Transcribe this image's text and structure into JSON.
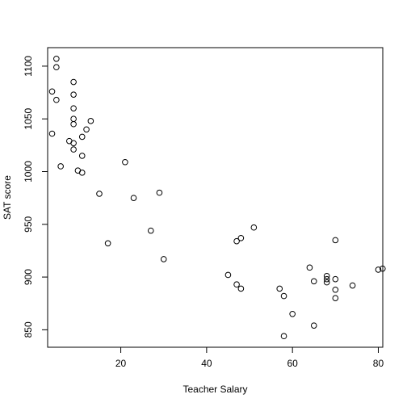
{
  "chart_data": {
    "type": "scatter",
    "title": "",
    "xlabel": "Teacher Salary",
    "ylabel": "SAT score",
    "xlim": [
      2.96,
      81.04
    ],
    "ylim": [
      833.44,
      1117.56
    ],
    "xticks": [
      20,
      40,
      60,
      80
    ],
    "yticks": [
      850,
      900,
      950,
      1000,
      1050,
      1100
    ],
    "grid": false,
    "legend": "none",
    "point_style": "open-circle",
    "colors": {
      "points": "#000000",
      "axes": "#000000",
      "background": "#ffffff"
    },
    "points": [
      {
        "x": 5.0,
        "y": 1107
      },
      {
        "x": 5.0,
        "y": 1099
      },
      {
        "x": 4.0,
        "y": 1076
      },
      {
        "x": 5.0,
        "y": 1068
      },
      {
        "x": 4.0,
        "y": 1036
      },
      {
        "x": 6.0,
        "y": 1005
      },
      {
        "x": 8.0,
        "y": 1029
      },
      {
        "x": 9.0,
        "y": 1085
      },
      {
        "x": 9.0,
        "y": 1073
      },
      {
        "x": 9.0,
        "y": 1060
      },
      {
        "x": 9.0,
        "y": 1050
      },
      {
        "x": 9.0,
        "y": 1045
      },
      {
        "x": 9.0,
        "y": 1027
      },
      {
        "x": 9.0,
        "y": 1021
      },
      {
        "x": 11.0,
        "y": 1033
      },
      {
        "x": 12.0,
        "y": 1040
      },
      {
        "x": 13.0,
        "y": 1048
      },
      {
        "x": 11.0,
        "y": 1015
      },
      {
        "x": 10.0,
        "y": 1001
      },
      {
        "x": 11.0,
        "y": 999
      },
      {
        "x": 15.0,
        "y": 979
      },
      {
        "x": 17.0,
        "y": 932
      },
      {
        "x": 21.0,
        "y": 1009
      },
      {
        "x": 23.0,
        "y": 975
      },
      {
        "x": 27.0,
        "y": 944
      },
      {
        "x": 29.0,
        "y": 980
      },
      {
        "x": 30.0,
        "y": 917
      },
      {
        "x": 45.0,
        "y": 902
      },
      {
        "x": 47.0,
        "y": 934
      },
      {
        "x": 48.0,
        "y": 937
      },
      {
        "x": 51.0,
        "y": 947
      },
      {
        "x": 47.0,
        "y": 893
      },
      {
        "x": 48.0,
        "y": 889
      },
      {
        "x": 57.0,
        "y": 889
      },
      {
        "x": 58.0,
        "y": 882
      },
      {
        "x": 58.0,
        "y": 844
      },
      {
        "x": 60.0,
        "y": 865
      },
      {
        "x": 64.0,
        "y": 909
      },
      {
        "x": 65.0,
        "y": 896
      },
      {
        "x": 65.0,
        "y": 854
      },
      {
        "x": 68.0,
        "y": 901
      },
      {
        "x": 68.0,
        "y": 898
      },
      {
        "x": 68.0,
        "y": 895
      },
      {
        "x": 70.0,
        "y": 935
      },
      {
        "x": 70.0,
        "y": 898
      },
      {
        "x": 70.0,
        "y": 888
      },
      {
        "x": 70.0,
        "y": 880
      },
      {
        "x": 74.0,
        "y": 892
      },
      {
        "x": 80.0,
        "y": 907
      },
      {
        "x": 81.0,
        "y": 908
      }
    ]
  }
}
